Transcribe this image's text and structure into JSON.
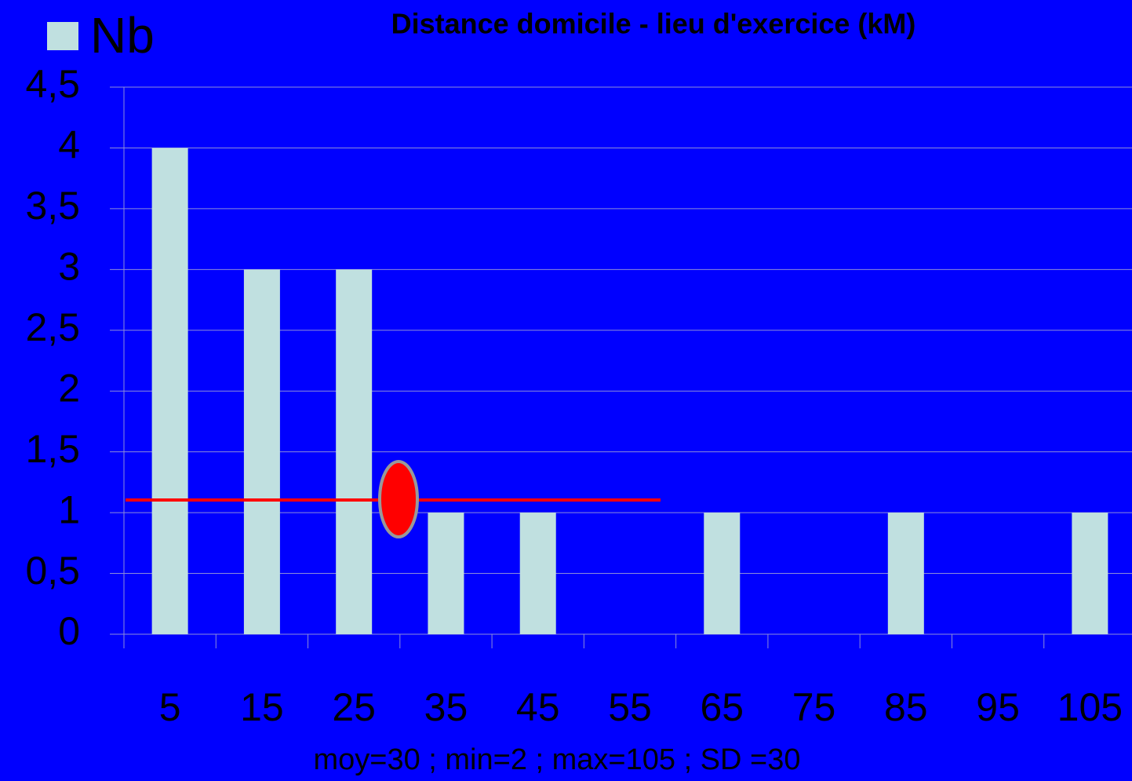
{
  "chart_data": {
    "type": "bar",
    "title": "Distance domicile - lieu d'exercice (kM)",
    "categories": [
      "5",
      "15",
      "25",
      "35",
      "45",
      "55",
      "65",
      "75",
      "85",
      "95",
      "105"
    ],
    "series": [
      {
        "name": "Nb",
        "color": "#c0e0e0",
        "values": [
          4,
          3,
          3,
          1,
          1,
          0,
          1,
          0,
          1,
          0,
          1
        ]
      }
    ],
    "ylim": [
      0,
      4.5
    ],
    "yticks": [
      0,
      {
        "value": 0.5,
        "label": "0,5"
      },
      1,
      {
        "value": 1.5,
        "label": "1,5"
      },
      2,
      {
        "value": 2.5,
        "label": "2,5"
      },
      3,
      {
        "value": 3.5,
        "label": "3,5"
      },
      4,
      {
        "value": 4.5,
        "label": "4,5"
      }
    ],
    "grid": true,
    "legend": "top-left",
    "annotation": "moy=30 ; min=2 ; max=105 ; SD =30"
  }
}
